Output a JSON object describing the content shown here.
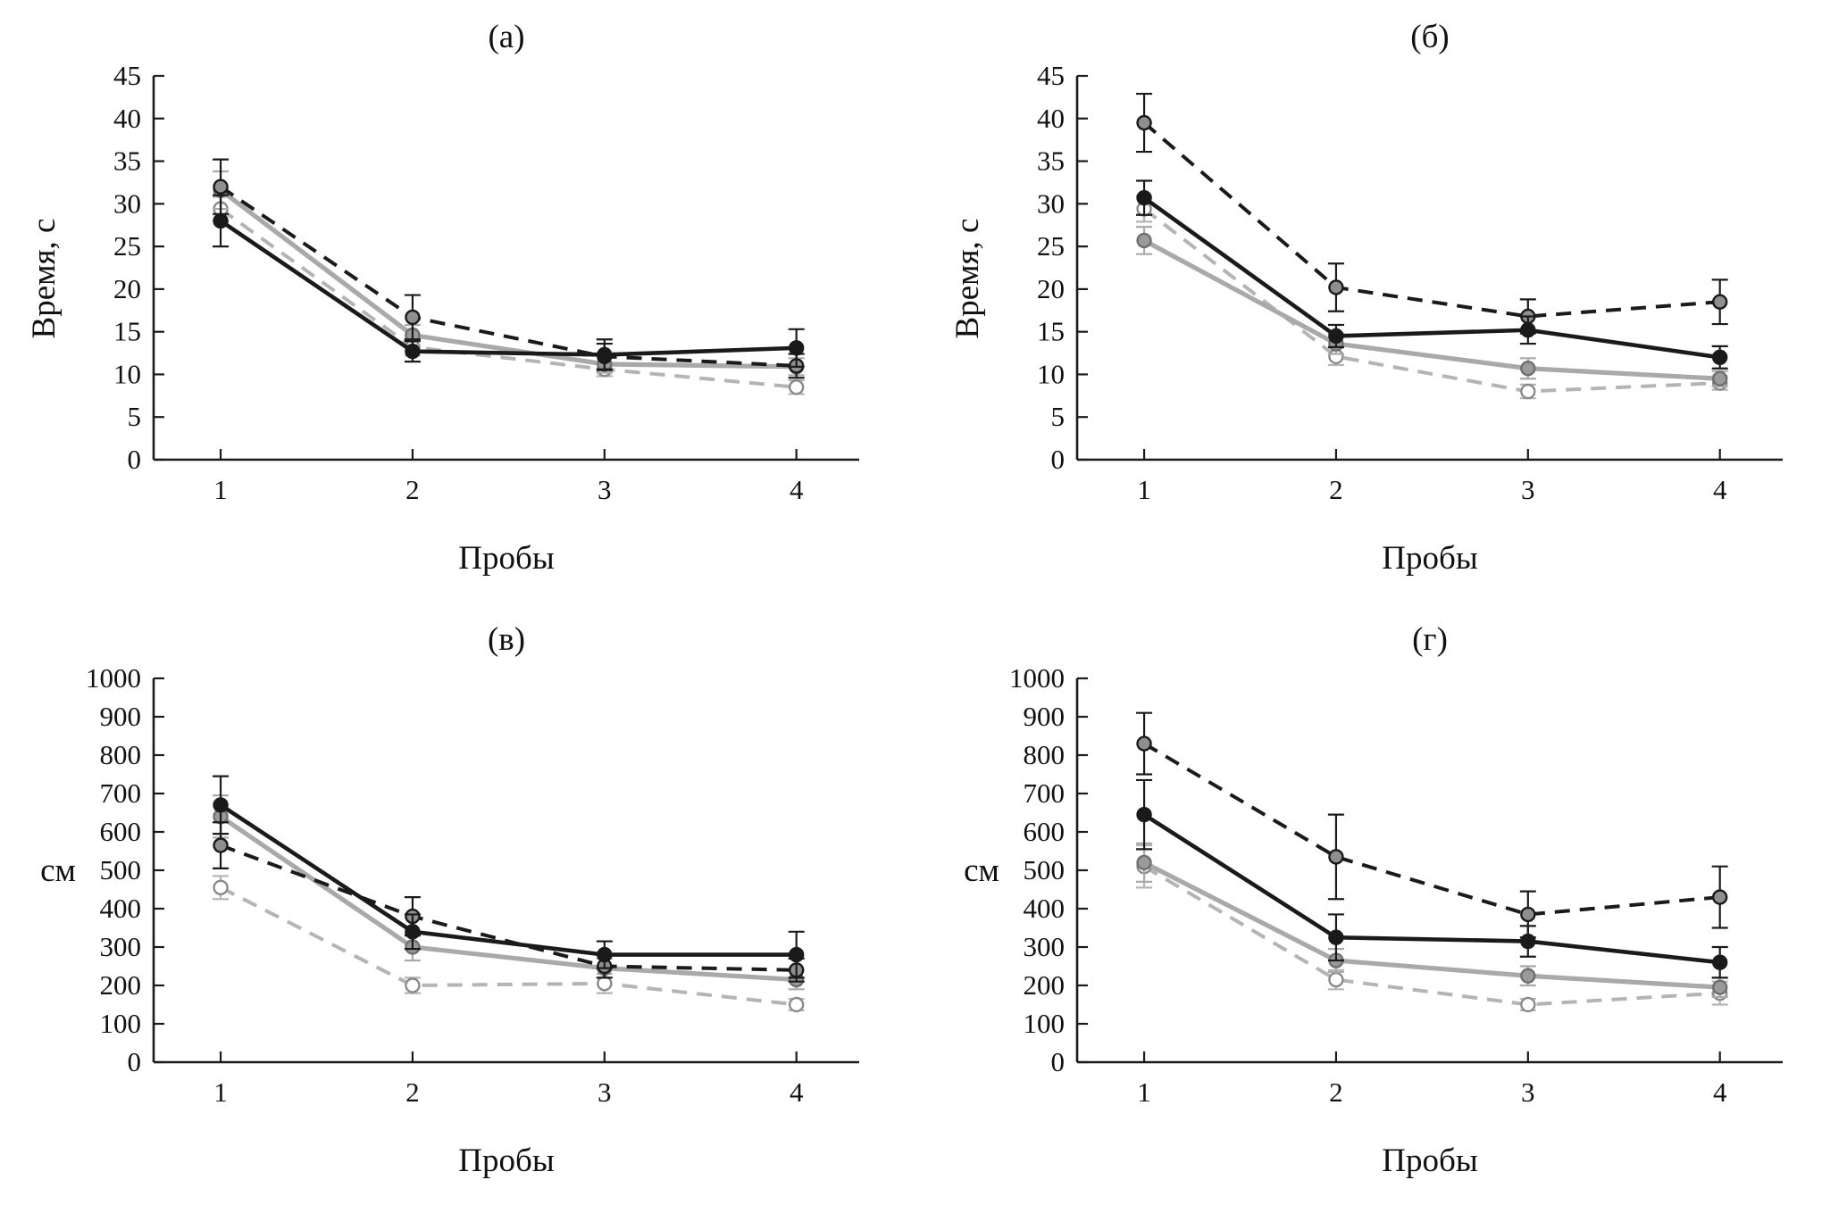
{
  "page": {
    "background": "#ffffff",
    "axis_color": "#1a1a1a"
  },
  "chart_data": [
    {
      "type": "line",
      "title": "(а)",
      "xlabel": "Пробы",
      "ylabel": "Время, с",
      "ylabel_rotated": true,
      "ylim": [
        0,
        45
      ],
      "ytick_step": 5,
      "grid": false,
      "legend": "none",
      "categories": [
        "1",
        "2",
        "3",
        "4"
      ],
      "series": [
        {
          "name": "black-solid",
          "line": "solid",
          "color": "#1a1a1a",
          "width": 4.6,
          "marker_fill": "#1a1a1a",
          "marker_edge": "#1a1a1a",
          "values": [
            28.0,
            12.7,
            12.3,
            13.1
          ],
          "errors": [
            3.0,
            1.2,
            1.8,
            2.2
          ]
        },
        {
          "name": "black-dashed",
          "line": "dashed",
          "color": "#1a1a1a",
          "width": 4.0,
          "marker_fill": "#8f8f8f",
          "marker_edge": "#1a1a1a",
          "values": [
            32.0,
            16.7,
            12.1,
            11.0
          ],
          "errors": [
            3.2,
            2.6,
            1.5,
            1.4
          ]
        },
        {
          "name": "gray-solid",
          "line": "solid",
          "color": "#a9a9a9",
          "width": 5.2,
          "marker_fill": "#9a9a9a",
          "marker_edge": "#6f6f6f",
          "values": [
            31.6,
            14.6,
            11.2,
            10.9
          ],
          "errors": [
            2.2,
            1.2,
            1.0,
            1.0
          ]
        },
        {
          "name": "gray-dashed",
          "line": "dashed",
          "color": "#b4b4b4",
          "width": 4.0,
          "marker_fill": "#ffffff",
          "marker_edge": "#8a8a8a",
          "values": [
            29.4,
            13.2,
            10.6,
            8.5
          ],
          "errors": [
            1.4,
            1.0,
            0.8,
            0.8
          ]
        }
      ]
    },
    {
      "type": "line",
      "title": "(б)",
      "xlabel": "Пробы",
      "ylabel": "Время, с",
      "ylabel_rotated": true,
      "ylim": [
        0,
        45
      ],
      "ytick_step": 5,
      "grid": false,
      "legend": "none",
      "categories": [
        "1",
        "2",
        "3",
        "4"
      ],
      "series": [
        {
          "name": "black-solid",
          "line": "solid",
          "color": "#1a1a1a",
          "width": 4.6,
          "marker_fill": "#1a1a1a",
          "marker_edge": "#1a1a1a",
          "values": [
            30.7,
            14.5,
            15.2,
            12.0
          ],
          "errors": [
            2.0,
            1.3,
            1.6,
            1.3
          ]
        },
        {
          "name": "black-dashed",
          "line": "dashed",
          "color": "#1a1a1a",
          "width": 4.0,
          "marker_fill": "#8f8f8f",
          "marker_edge": "#1a1a1a",
          "values": [
            39.5,
            20.2,
            16.8,
            18.5
          ],
          "errors": [
            3.4,
            2.8,
            2.0,
            2.6
          ]
        },
        {
          "name": "gray-solid",
          "line": "solid",
          "color": "#a9a9a9",
          "width": 5.2,
          "marker_fill": "#9a9a9a",
          "marker_edge": "#6f6f6f",
          "values": [
            25.7,
            13.6,
            10.7,
            9.5
          ],
          "errors": [
            1.6,
            1.2,
            1.2,
            0.9
          ]
        },
        {
          "name": "gray-dashed",
          "line": "dashed",
          "color": "#b4b4b4",
          "width": 4.0,
          "marker_fill": "#ffffff",
          "marker_edge": "#8a8a8a",
          "values": [
            29.4,
            12.1,
            8.0,
            9.0
          ],
          "errors": [
            1.5,
            1.0,
            0.8,
            0.8
          ]
        }
      ]
    },
    {
      "type": "line",
      "title": "(в)",
      "xlabel": "Пробы",
      "ylabel": "см",
      "ylabel_rotated": false,
      "ylim": [
        0,
        1000
      ],
      "ytick_step": 100,
      "grid": false,
      "legend": "none",
      "categories": [
        "1",
        "2",
        "3",
        "4"
      ],
      "series": [
        {
          "name": "black-solid",
          "line": "solid",
          "color": "#1a1a1a",
          "width": 4.6,
          "marker_fill": "#1a1a1a",
          "marker_edge": "#1a1a1a",
          "values": [
            670,
            340,
            280,
            280
          ],
          "errors": [
            75,
            45,
            35,
            60
          ]
        },
        {
          "name": "black-dashed",
          "line": "dashed",
          "color": "#1a1a1a",
          "width": 4.0,
          "marker_fill": "#8f8f8f",
          "marker_edge": "#1a1a1a",
          "values": [
            565,
            380,
            250,
            240
          ],
          "errors": [
            60,
            50,
            30,
            30
          ]
        },
        {
          "name": "gray-solid",
          "line": "solid",
          "color": "#a9a9a9",
          "width": 5.2,
          "marker_fill": "#9a9a9a",
          "marker_edge": "#6f6f6f",
          "values": [
            640,
            300,
            245,
            215
          ],
          "errors": [
            55,
            35,
            25,
            25
          ]
        },
        {
          "name": "gray-dashed",
          "line": "dashed",
          "color": "#b4b4b4",
          "width": 4.0,
          "marker_fill": "#ffffff",
          "marker_edge": "#8a8a8a",
          "values": [
            455,
            200,
            205,
            150
          ],
          "errors": [
            30,
            20,
            25,
            15
          ]
        }
      ]
    },
    {
      "type": "line",
      "title": "(г)",
      "xlabel": "Пробы",
      "ylabel": "см",
      "ylabel_rotated": false,
      "ylim": [
        0,
        1000
      ],
      "ytick_step": 100,
      "grid": false,
      "legend": "none",
      "categories": [
        "1",
        "2",
        "3",
        "4"
      ],
      "series": [
        {
          "name": "black-solid",
          "line": "solid",
          "color": "#1a1a1a",
          "width": 4.6,
          "marker_fill": "#1a1a1a",
          "marker_edge": "#1a1a1a",
          "values": [
            645,
            325,
            315,
            260
          ],
          "errors": [
            90,
            60,
            40,
            40
          ]
        },
        {
          "name": "black-dashed",
          "line": "dashed",
          "color": "#1a1a1a",
          "width": 4.0,
          "marker_fill": "#8f8f8f",
          "marker_edge": "#1a1a1a",
          "values": [
            830,
            535,
            385,
            430
          ],
          "errors": [
            80,
            110,
            60,
            80
          ]
        },
        {
          "name": "gray-solid",
          "line": "solid",
          "color": "#a9a9a9",
          "width": 5.2,
          "marker_fill": "#9a9a9a",
          "marker_edge": "#6f6f6f",
          "values": [
            520,
            265,
            225,
            195
          ],
          "errors": [
            50,
            30,
            25,
            25
          ]
        },
        {
          "name": "gray-dashed",
          "line": "dashed",
          "color": "#b4b4b4",
          "width": 4.0,
          "marker_fill": "#ffffff",
          "marker_edge": "#8a8a8a",
          "values": [
            510,
            215,
            150,
            180
          ],
          "errors": [
            55,
            25,
            15,
            30
          ]
        }
      ]
    }
  ]
}
